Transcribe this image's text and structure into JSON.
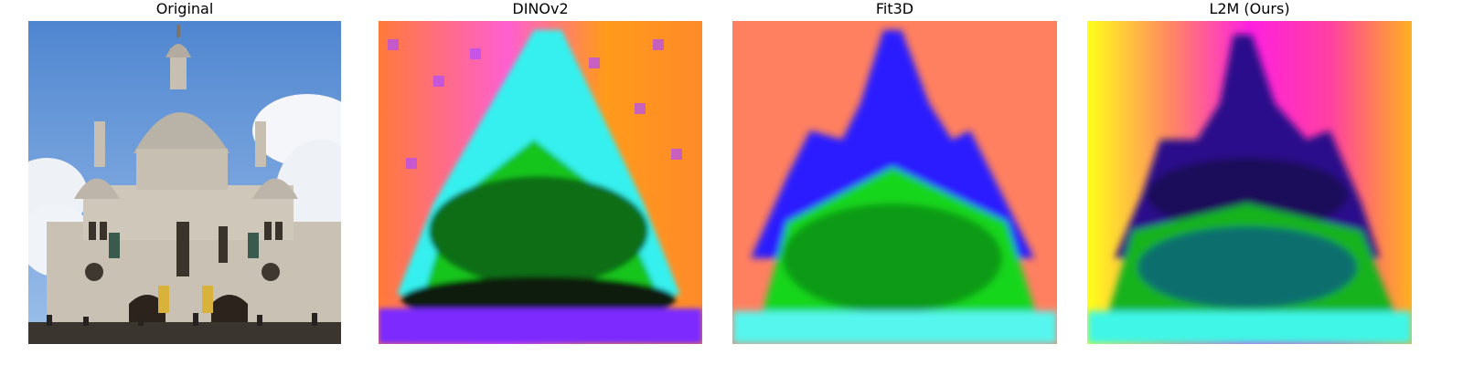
{
  "panels": [
    {
      "title": "Original",
      "image": "photo-sacre-coeur-basilica"
    },
    {
      "title": "DINOv2",
      "image": "feature-map-dinov2"
    },
    {
      "title": "Fit3D",
      "image": "feature-map-fit3d"
    },
    {
      "title": "L2M (Ours)",
      "image": "feature-map-l2m"
    }
  ],
  "colors": {
    "sky": "#5b8fd6",
    "stone": "#cfc8bd",
    "dinov2_bg": "#ff9a1a",
    "dinov2_top": "#35f0ee",
    "dinov2_mid": "#17c51e",
    "dinov2_base": "#7b2cff",
    "fit3d_bg": "#ff8060",
    "fit3d_dome": "#2a1bff",
    "fit3d_mid": "#14d61d",
    "fit3d_base": "#56f6ee",
    "l2m_left": "#ffff1a",
    "l2m_top": "#ff20e0",
    "l2m_dome": "#2a108a",
    "l2m_mid": "#13b31f",
    "l2m_base": "#3ff6e6"
  }
}
